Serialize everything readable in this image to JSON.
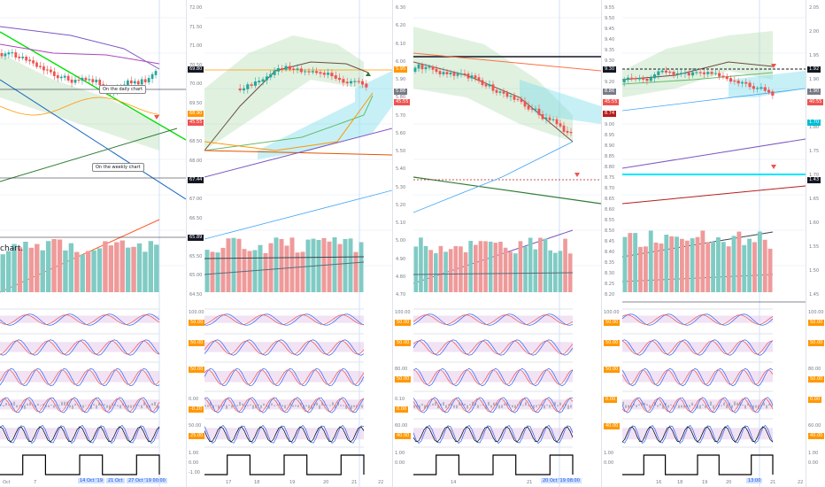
{
  "colors": {
    "up": "#26a69a",
    "down": "#ef5350",
    "cloud_green": "#a5d6a7",
    "cloud_aqua": "#80deea",
    "osc_band": "#e1bee7",
    "grid": "#f0f3fa",
    "separator": "#e0e3eb"
  },
  "panels": [
    {
      "id": "p1",
      "price_ticks": [
        "72.00",
        "71.50",
        "71.00",
        "70.50",
        "70.00",
        "69.50",
        "69.00",
        "68.50",
        "68.00",
        "67.50",
        "67.00",
        "66.50",
        "66.00",
        "65.50",
        "65.00",
        "64.50"
      ],
      "badges": [
        {
          "text": "69.80",
          "kind": "black",
          "row": 2
        },
        {
          "text": "68.90",
          "kind": "orange",
          "row": 5
        },
        {
          "text": "45:55",
          "kind": "red",
          "row": 6
        },
        {
          "text": "67.44",
          "kind": "black",
          "row": 9
        },
        {
          "text": "65.89",
          "kind": "black",
          "row": 12
        }
      ],
      "osc_ticks": [
        [
          "100.00",
          "50.00"
        ],
        [
          "50.00"
        ],
        [
          "50.00"
        ],
        [
          "0.00",
          "-0.20"
        ],
        [
          "50.00",
          "25.00"
        ],
        [
          "1.00",
          "0.00",
          "-1.00"
        ]
      ],
      "x_labels": [
        "Oct",
        "7"
      ],
      "x_selected": [
        "14 Oct '19",
        "21 Oct",
        "27 Oct '19  00:00"
      ],
      "notes": [
        "On the daily chart",
        "On the weekly chart"
      ],
      "partial_text": "chart."
    },
    {
      "id": "p2",
      "price_ticks": [
        "6.30",
        "6.20",
        "6.10",
        "6.00",
        "5.90",
        "5.80",
        "5.70",
        "5.60",
        "5.50",
        "5.40",
        "5.30",
        "5.20",
        "5.10",
        "5.00",
        "4.90",
        "4.80",
        "4.70"
      ],
      "badges": [
        {
          "text": "5.95",
          "kind": "orange",
          "row": 2
        },
        {
          "text": "5.86",
          "kind": "gray",
          "row": 3
        },
        {
          "text": "45:55",
          "kind": "red",
          "row": 4
        }
      ],
      "osc_ticks": [
        [
          "100.00",
          "50.00"
        ],
        [
          "50.00"
        ],
        [
          "80.00",
          "50.00"
        ],
        [
          "0.10",
          "0.00"
        ],
        [
          "60.00",
          "40.00"
        ],
        [
          "1.00",
          "0.00"
        ]
      ],
      "x_labels": [
        "17",
        "18",
        "19",
        "20",
        "21",
        "22"
      ]
    },
    {
      "id": "p3",
      "price_ticks": [
        "9.55",
        "9.50",
        "9.45",
        "9.40",
        "9.35",
        "9.30",
        "9.25",
        "9.20",
        "9.15",
        "9.10",
        "9.05",
        "9.00",
        "8.95",
        "8.90",
        "8.85",
        "8.80",
        "8.75",
        "8.70",
        "8.65",
        "8.60",
        "8.55",
        "8.50",
        "8.45",
        "8.40",
        "8.35",
        "8.30",
        "8.25",
        "8.20"
      ],
      "badges": [
        {
          "text": "9.30",
          "kind": "black",
          "row": 2
        },
        {
          "text": "8.86",
          "kind": "gray",
          "row": 3
        },
        {
          "text": "45:55",
          "kind": "red",
          "row": 4
        },
        {
          "text": "8.74",
          "kind": "darkred",
          "row": 5
        }
      ],
      "osc_ticks": [
        [
          "100.00",
          "50.00"
        ],
        [
          "50.00"
        ],
        [
          "50.00"
        ],
        [
          "0.00"
        ],
        [
          "40.00"
        ],
        [
          "1.00",
          "0.00"
        ]
      ],
      "x_labels": [
        "14",
        "21"
      ],
      "x_selected": [
        "20 Oct '19  08:00"
      ]
    },
    {
      "id": "p4",
      "price_ticks": [
        "2.05",
        "2.00",
        "1.95",
        "1.90",
        "1.85",
        "1.80",
        "1.75",
        "1.70",
        "1.65",
        "1.60",
        "1.55",
        "1.50",
        "1.45"
      ],
      "badges": [
        {
          "text": "1.92",
          "kind": "black",
          "row": 2
        },
        {
          "text": "1.90",
          "kind": "gray",
          "row": 3
        },
        {
          "text": "40:55",
          "kind": "red",
          "row": 4
        },
        {
          "text": "1.70",
          "kind": "cyan",
          "row": 6
        },
        {
          "text": "1.43",
          "kind": "black",
          "row": 9
        }
      ],
      "osc_ticks": [
        [
          "100.00",
          "50.00"
        ],
        [
          "50.00"
        ],
        [
          "80.00",
          "50.00"
        ],
        [
          "0.00"
        ],
        [
          "60.00",
          "40.00"
        ],
        [
          "1.00",
          "0.00"
        ]
      ],
      "x_labels": [
        "16",
        "18",
        "19",
        "20",
        "21",
        "22"
      ],
      "x_selected": [
        "13:00"
      ]
    }
  ]
}
